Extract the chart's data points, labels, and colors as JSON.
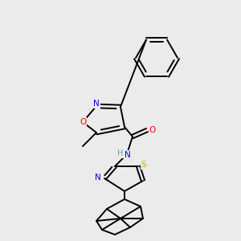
{
  "bg_color": "#ebebeb",
  "C": "#000000",
  "N": "#0000ff",
  "O": "#ff0000",
  "S": "#ccaa00",
  "H": "#5faaaa",
  "lw": 1.4,
  "fs": 7.5
}
